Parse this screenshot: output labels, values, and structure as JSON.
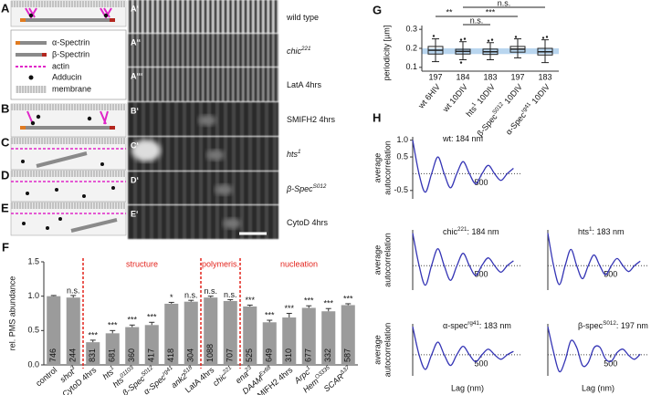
{
  "panel_letters": [
    "A",
    "B",
    "C",
    "D",
    "E",
    "F",
    "G",
    "H"
  ],
  "schematic_legend": [
    "α-Spectrin",
    "β-Spectrin",
    "actin",
    "Adducin",
    "membrane"
  ],
  "micrographs": [
    {
      "letter": "A‘",
      "label": "wild type"
    },
    {
      "letter": "A‘‘",
      "label": "chic",
      "label_sup": "221"
    },
    {
      "letter": "A‘‘‘",
      "label": "LatA 4hrs"
    },
    {
      "letter": "B‘",
      "label": "SMIFH2 4hrs"
    },
    {
      "letter": "C‘",
      "label": "hts",
      "label_sup": "1"
    },
    {
      "letter": "D‘",
      "label": "β-Spec",
      "label_sup": "S012"
    },
    {
      "letter": "E‘",
      "label": "CytoD 4hrs"
    }
  ],
  "chart_data": [
    {
      "type": "bar",
      "y_label": "rel. PMS abundance",
      "categories": [
        "control",
        "shot",
        "CytoD 4hrs",
        "hts",
        "hts",
        "β-Spec",
        "α-Spec",
        "ank2",
        "LatA 4hrs",
        "chic",
        "ena",
        "DAAM",
        "SMIFH2 4hrs",
        "Arpc",
        "Hem",
        "SCAR"
      ],
      "category_sup": [
        null,
        "3",
        null,
        "1",
        "01103",
        "S012",
        "rg41",
        "518",
        null,
        "221",
        "23",
        "Ex68",
        null,
        "1",
        "O3335",
        "Δ37"
      ],
      "values": [
        1.0,
        0.98,
        0.33,
        0.46,
        0.55,
        0.58,
        0.89,
        0.92,
        0.98,
        0.93,
        0.85,
        0.62,
        0.69,
        0.83,
        0.78,
        0.87
      ],
      "errors": [
        0.01,
        0.03,
        0.03,
        0.04,
        0.03,
        0.04,
        0.02,
        0.02,
        0.02,
        0.02,
        0.02,
        0.03,
        0.06,
        0.03,
        0.04,
        0.02
      ],
      "n_labels": [
        746,
        244,
        831,
        681,
        360,
        417,
        418,
        304,
        1088,
        707,
        525,
        649,
        310,
        677,
        332,
        587
      ],
      "significance": [
        null,
        "n.s.",
        "***",
        "***",
        "***",
        "***",
        "*",
        "n.s.",
        "n.s.",
        "n.s.",
        "***",
        "***",
        "***",
        "***",
        "***",
        "***"
      ],
      "sections": [
        "structure",
        "polymeris.",
        "nucleation"
      ],
      "section_color": "#e3231c",
      "color": "#9b9b9b",
      "ylim": [
        0,
        1.5
      ],
      "yticks": [
        {
          "value": 0,
          "label": "0.0"
        },
        0.5,
        {
          "value": 1,
          "label": "1.0"
        },
        1.5
      ]
    },
    {
      "type": "box",
      "y_label": "periodicity [µm]",
      "categories": [
        "wt 6HIV",
        "wt 10DIV",
        "hts",
        "β-Spec",
        "α-Spec"
      ],
      "category_sup": [
        null,
        null,
        "1",
        "S012",
        "rg41"
      ],
      "category_suffix": [
        null,
        null,
        "10DIV",
        "10DIV",
        "10DIV"
      ],
      "median": [
        0.19,
        0.184,
        0.182,
        0.196,
        0.182
      ],
      "q1": [
        0.17,
        0.17,
        0.168,
        0.18,
        0.165
      ],
      "q3": [
        0.21,
        0.195,
        0.196,
        0.21,
        0.2
      ],
      "whisker_low": [
        0.13,
        0.14,
        0.14,
        0.15,
        0.125
      ],
      "whisker_high": [
        0.25,
        0.235,
        0.23,
        0.25,
        0.245
      ],
      "outliers": [
        [
          0.265
        ],
        [
          0.245,
          0.25,
          0.125
        ],
        [
          0.24,
          0.245
        ],
        [
          0.26
        ],
        [
          0.255,
          0.26
        ]
      ],
      "n_labels": [
        197,
        184,
        183,
        197,
        183
      ],
      "reference_band": [
        0.17,
        0.2
      ],
      "band_color": "#b9d6ef",
      "brackets": [
        {
          "label": "**",
          "from": 0,
          "to": 1
        },
        {
          "label": "n.s.",
          "from": 1,
          "to": 4
        },
        {
          "label": "n.s.",
          "from": 1,
          "to": 2
        },
        {
          "label": "***",
          "from": 1,
          "to": 3
        }
      ],
      "ylim": [
        0.08,
        0.32
      ],
      "yticks": [
        0.1,
        0.2,
        0.3
      ]
    },
    {
      "type": "line",
      "title": "wt: 184 nm",
      "y_label": [
        "average",
        "autocorrelation"
      ],
      "color": "#3535b5",
      "x": [
        0,
        46,
        92,
        138,
        184,
        230,
        276,
        322,
        368,
        414,
        460,
        506,
        552,
        598,
        644,
        690,
        736
      ],
      "values": [
        1,
        0,
        -0.55,
        0,
        0.5,
        0,
        -0.42,
        0,
        0.36,
        0,
        -0.3,
        0,
        0.25,
        0,
        -0.2,
        0,
        0.16
      ],
      "xlim": [
        0,
        800
      ],
      "xticks": [
        500
      ],
      "ylim": [
        -0.75,
        1.1
      ],
      "yticks": [
        {
          "value": 1,
          "label": "1.0"
        },
        0.5,
        -0.5
      ]
    },
    {
      "type": "line",
      "title": "chic",
      "title_sup": "221",
      "title_rest": ": 184 nm",
      "y_label": [
        "average",
        "autocorrelation"
      ],
      "color": "#3535b5",
      "x": [
        0,
        46,
        92,
        138,
        184,
        230,
        276,
        322,
        368,
        414,
        460,
        506,
        552,
        598,
        644,
        690,
        736
      ],
      "values": [
        1,
        0.02,
        -0.6,
        0.01,
        0.52,
        0,
        -0.45,
        -0.01,
        0.38,
        0,
        -0.3,
        0.01,
        0.24,
        0,
        -0.2,
        0,
        0.15
      ],
      "xlim": [
        0,
        800
      ],
      "xticks": [
        500
      ],
      "ylim": [
        -0.75,
        1.1
      ]
    },
    {
      "type": "line",
      "title": "hts",
      "title_sup": "1",
      "title_rest": ": 183 nm",
      "color": "#3535b5",
      "x": [
        0,
        46,
        92,
        138,
        184,
        230,
        276,
        322,
        368,
        414,
        460,
        506,
        552,
        598,
        644,
        690,
        736
      ],
      "values": [
        1,
        0,
        -0.58,
        0,
        0.5,
        0,
        -0.4,
        0,
        0.33,
        0,
        -0.28,
        0,
        0.22,
        0,
        -0.18,
        0,
        0.14
      ],
      "xlim": [
        0,
        800
      ],
      "xticks": [
        500
      ],
      "ylim": [
        -0.75,
        1.1
      ]
    },
    {
      "type": "line",
      "title": "α-spec",
      "title_sup": "rg41",
      "title_rest": ": 183 nm",
      "y_label": [
        "average",
        "autocorrelation"
      ],
      "x_label": "Lag (nm)",
      "color": "#3535b5",
      "x": [
        0,
        46,
        92,
        138,
        184,
        230,
        276,
        322,
        368,
        414,
        460,
        506,
        552,
        598,
        644,
        690,
        736
      ],
      "values": [
        1,
        0.01,
        -0.52,
        0,
        0.45,
        0,
        -0.38,
        0,
        0.3,
        0,
        -0.25,
        0,
        0.2,
        0,
        -0.16,
        0,
        0.12
      ],
      "xlim": [
        0,
        800
      ],
      "xticks": [
        500
      ],
      "ylim": [
        -0.75,
        1.1
      ]
    },
    {
      "type": "line",
      "title": "β-spec",
      "title_sup": "S012",
      "title_rest": ": 197 nm",
      "x_label": "Lag (nm)",
      "color": "#3535b5",
      "x": [
        0,
        46,
        92,
        138,
        184,
        230,
        276,
        322,
        368,
        414,
        460,
        506,
        552,
        598,
        644,
        690,
        736
      ],
      "values": [
        1,
        0.09,
        -0.6,
        -0.2,
        0.5,
        0.26,
        -0.38,
        -0.28,
        0.25,
        0.27,
        -0.15,
        -0.23,
        0.08,
        0.2,
        -0.02,
        -0.16,
        0.02
      ],
      "xlim": [
        0,
        800
      ],
      "xticks": [
        500
      ],
      "ylim": [
        -0.75,
        1.1
      ]
    }
  ]
}
